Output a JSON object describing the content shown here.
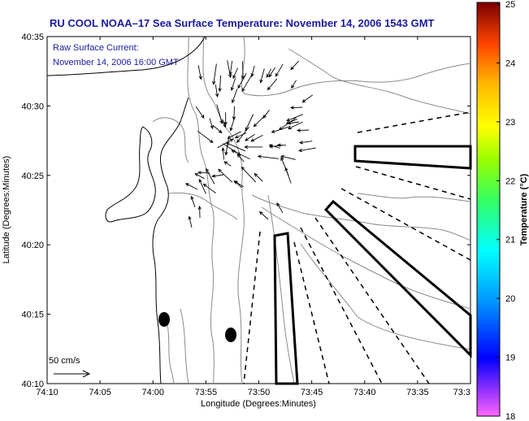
{
  "title": "RU COOL  NOAA–17  Sea Surface Temperature:  November 14, 2006 1543 GMT",
  "annotation": {
    "line1": "Raw Surface Current:",
    "line2": "November 14, 2006 16:00 GMT"
  },
  "scale_label": "50 cm/s",
  "chart_data": {
    "type": "map",
    "xlabel": "Longitude (Degrees:Minutes)",
    "ylabel": "Latitude (Degrees:Minutes)",
    "x_ticks": [
      "74:10",
      "74:05",
      "74:00",
      "73:55",
      "73:50",
      "73:45",
      "73:40",
      "73:35",
      "73:3"
    ],
    "y_ticks": [
      "40:35",
      "40:30",
      "40:25",
      "40:20",
      "40:15",
      "40:10"
    ],
    "xlim_minutes_west": [
      10,
      30
    ],
    "ylim_minutes_north": [
      10,
      35
    ],
    "colorbar": {
      "label": "Temperature (°C)",
      "min": 18,
      "max": 25,
      "ticks": [
        "25",
        "24",
        "23",
        "22",
        "21",
        "20",
        "19",
        "18"
      ]
    },
    "colors": {
      "title": "#1a1aa0",
      "annotation": "#1a1aa0",
      "coast": "#000000",
      "contours": "#8a8a8a"
    }
  }
}
